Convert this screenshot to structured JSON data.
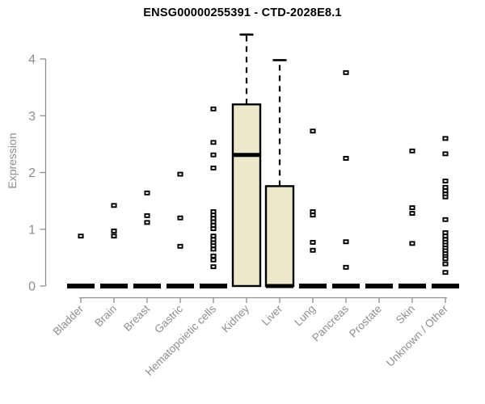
{
  "chart_data": {
    "type": "boxplot",
    "title": "ENSG00000255391 - CTD-2028E8.1",
    "ylabel": "Expression",
    "xlabel": "",
    "ylim": [
      0,
      4.6
    ],
    "yticks": [
      0,
      1,
      2,
      3,
      4
    ],
    "grid": false,
    "legend": "none",
    "box_fill": "#ece8cc",
    "box_stroke": "#000000",
    "axis_color": "#8e8e8e",
    "categories": [
      "Bladder",
      "Brain",
      "Breast",
      "Gastric",
      "Hematopoietic cells",
      "Kidney",
      "Liver",
      "Lung",
      "Pancreas",
      "Prostate",
      "Skin",
      "Unknown / Other"
    ],
    "boxes": [
      {
        "category": "Bladder",
        "q1": 0,
        "median": 0,
        "q3": 0,
        "whisker_low": 0,
        "whisker_high": 0,
        "outliers": [
          0.88
        ]
      },
      {
        "category": "Brain",
        "q1": 0,
        "median": 0,
        "q3": 0,
        "whisker_low": 0,
        "whisker_high": 0,
        "outliers": [
          1.42,
          0.97,
          0.88
        ]
      },
      {
        "category": "Breast",
        "q1": 0,
        "median": 0,
        "q3": 0,
        "whisker_low": 0,
        "whisker_high": 0,
        "outliers": [
          1.64,
          1.24,
          1.12
        ]
      },
      {
        "category": "Gastric",
        "q1": 0,
        "median": 0,
        "q3": 0,
        "whisker_low": 0,
        "whisker_high": 0,
        "outliers": [
          1.97,
          1.2,
          0.7
        ]
      },
      {
        "category": "Hematopoietic cells",
        "q1": 0,
        "median": 0,
        "q3": 0,
        "whisker_low": 0,
        "whisker_high": 0,
        "outliers": [
          3.12,
          2.53,
          2.31,
          2.08,
          1.31,
          1.25,
          1.19,
          1.13,
          1.07,
          1.01,
          0.88,
          0.82,
          0.76,
          0.71,
          0.65,
          0.53,
          0.46,
          0.34
        ]
      },
      {
        "category": "Kidney",
        "q1": 0,
        "median": 2.31,
        "q3": 3.2,
        "whisker_low": 0,
        "whisker_high": 4.43,
        "outliers": []
      },
      {
        "category": "Liver",
        "q1": 0,
        "median": 0,
        "q3": 1.76,
        "whisker_low": 0,
        "whisker_high": 3.98,
        "outliers": []
      },
      {
        "category": "Lung",
        "q1": 0,
        "median": 0,
        "q3": 0,
        "whisker_low": 0,
        "whisker_high": 0,
        "outliers": [
          2.73,
          1.31,
          1.25,
          0.77,
          0.63
        ]
      },
      {
        "category": "Pancreas",
        "q1": 0,
        "median": 0,
        "q3": 0,
        "whisker_low": 0,
        "whisker_high": 0,
        "outliers": [
          3.76,
          2.25,
          0.78,
          0.33
        ]
      },
      {
        "category": "Prostate",
        "q1": 0,
        "median": 0,
        "q3": 0,
        "whisker_low": 0,
        "whisker_high": 0,
        "outliers": []
      },
      {
        "category": "Skin",
        "q1": 0,
        "median": 0,
        "q3": 0,
        "whisker_low": 0,
        "whisker_high": 0,
        "outliers": [
          2.38,
          1.38,
          1.28,
          0.75
        ]
      },
      {
        "category": "Unknown / Other",
        "q1": 0,
        "median": 0,
        "q3": 0,
        "whisker_low": 0,
        "whisker_high": 0,
        "outliers": [
          2.6,
          2.33,
          1.85,
          1.74,
          1.68,
          1.62,
          1.57,
          1.17,
          0.94,
          0.88,
          0.82,
          0.77,
          0.72,
          0.67,
          0.62,
          0.57,
          0.52,
          0.48,
          0.39,
          0.24
        ]
      }
    ]
  }
}
